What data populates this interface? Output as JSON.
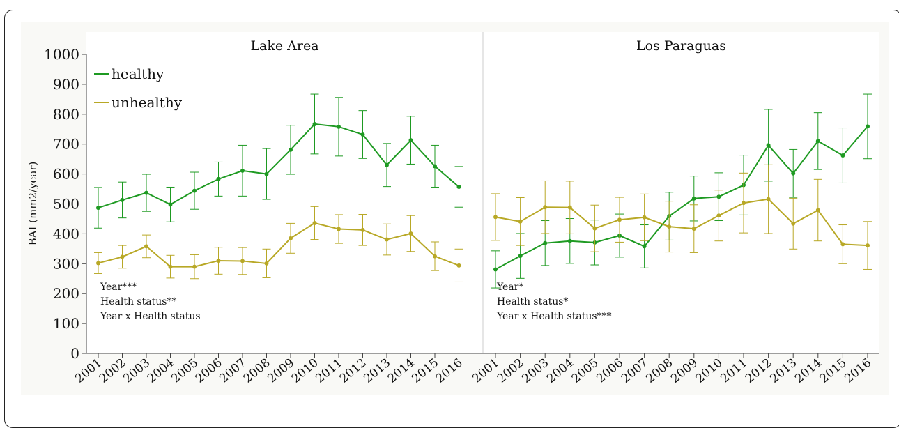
{
  "chart_data": {
    "type": "line",
    "ylabel": "BAI (mm2/year)",
    "ylim": [
      0,
      1000
    ],
    "yticks": [
      0,
      100,
      200,
      300,
      400,
      500,
      600,
      700,
      800,
      900,
      1000
    ],
    "legend": {
      "placement": "top-left",
      "entries": [
        {
          "name": "healthy",
          "color": "#1e9a22"
        },
        {
          "name": "unhealthy",
          "color": "#b8a826"
        }
      ]
    },
    "panels": [
      {
        "title": "Lake Area",
        "x": [
          "2001",
          "2002",
          "2003",
          "2004",
          "2005",
          "2006",
          "2007",
          "2008",
          "2009",
          "2010",
          "2011",
          "2012",
          "2013",
          "2014",
          "2015",
          "2016"
        ],
        "annotations": [
          "Year***",
          "Health status**",
          "Year x Health status"
        ],
        "series": [
          {
            "name": "healthy",
            "color": "#1e9a22",
            "values": [
              487,
              513,
              537,
              498,
              544,
              583,
              611,
              600,
              681,
              767,
              758,
              732,
              630,
              713,
              626,
              557
            ],
            "err": [
              68,
              60,
              62,
              58,
              62,
              57,
              85,
              85,
              82,
              100,
              98,
              80,
              72,
              80,
              70,
              68
            ]
          },
          {
            "name": "unhealthy",
            "color": "#b8a826",
            "values": [
              302,
              323,
              358,
              290,
              290,
              310,
              309,
              301,
              385,
              436,
              416,
              413,
              381,
              401,
              325,
              294
            ],
            "err": [
              35,
              38,
              38,
              38,
              40,
              45,
              45,
              48,
              50,
              55,
              48,
              52,
              52,
              60,
              48,
              55
            ]
          }
        ]
      },
      {
        "title": "Los Paraguas",
        "x": [
          "2001",
          "2002",
          "2003",
          "2004",
          "2005",
          "2006",
          "2007",
          "2008",
          "2009",
          "2010",
          "2011",
          "2012",
          "2013",
          "2014",
          "2015",
          "2016"
        ],
        "annotations": [
          "Year*",
          "Health status*",
          "Year x Health status***"
        ],
        "series": [
          {
            "name": "healthy",
            "color": "#1e9a22",
            "values": [
              281,
              326,
              369,
              376,
              371,
              394,
              358,
              459,
              518,
              524,
              563,
              696,
              602,
              710,
              662,
              759
            ],
            "err": [
              62,
              75,
              75,
              75,
              75,
              72,
              72,
              80,
              75,
              80,
              100,
              120,
              80,
              95,
              92,
              108
            ]
          },
          {
            "name": "unhealthy",
            "color": "#b8a826",
            "values": [
              456,
              441,
              489,
              488,
              418,
              447,
              455,
              424,
              417,
              461,
              503,
              516,
              434,
              479,
              365,
              361
            ],
            "err": [
              78,
              80,
              88,
              88,
              78,
              75,
              78,
              85,
              80,
              85,
              100,
              115,
              85,
              103,
              65,
              80
            ]
          }
        ]
      }
    ]
  }
}
